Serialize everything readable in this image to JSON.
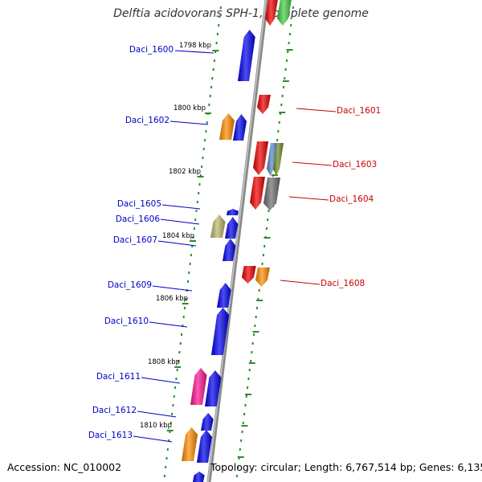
{
  "title": "Delftia acidovorans SPH-1, complete genome",
  "footer": {
    "accession": "Accession: NC_010002",
    "summary": "Topology: circular; Length: 6,767,514 bp; Genes: 6,135"
  },
  "colors": {
    "axis": "#8a8a8a",
    "tick": "#2e8b2e",
    "label_left": "#0000c8",
    "label_right": "#cc0000",
    "blue": "#0000ee",
    "red": "#ee0000",
    "orange": "#ff8c00",
    "green": "#44cc44",
    "khaki": "#bdb76b",
    "gray": "#6e6e6e",
    "steelblue": "#5b86c0",
    "olive": "#6b8e23",
    "magenta": "#ff1493"
  },
  "kbp_markers": [
    "1798 kbp",
    "1800 kbp",
    "1802 kbp",
    "1804 kbp",
    "1806 kbp",
    "1808 kbp",
    "1810 kbp"
  ],
  "genes_left": [
    {
      "name": "Daci_1600",
      "color": "blue"
    },
    {
      "name": "Daci_1602",
      "color": "blue"
    },
    {
      "name": "Daci_1605",
      "color": "blue"
    },
    {
      "name": "Daci_1606",
      "color": "khaki"
    },
    {
      "name": "Daci_1607",
      "color": "blue"
    },
    {
      "name": "Daci_1609",
      "color": "blue"
    },
    {
      "name": "Daci_1610",
      "color": "blue"
    },
    {
      "name": "Daci_1611",
      "color": "magenta"
    },
    {
      "name": "Daci_1612",
      "color": "blue"
    },
    {
      "name": "Daci_1613",
      "color": "blue"
    }
  ],
  "genes_right": [
    {
      "name": "Daci_1601",
      "color": "red"
    },
    {
      "name": "Daci_1603",
      "color": "red"
    },
    {
      "name": "Daci_1604",
      "color": "red"
    },
    {
      "name": "Daci_1608",
      "color": "red"
    }
  ]
}
